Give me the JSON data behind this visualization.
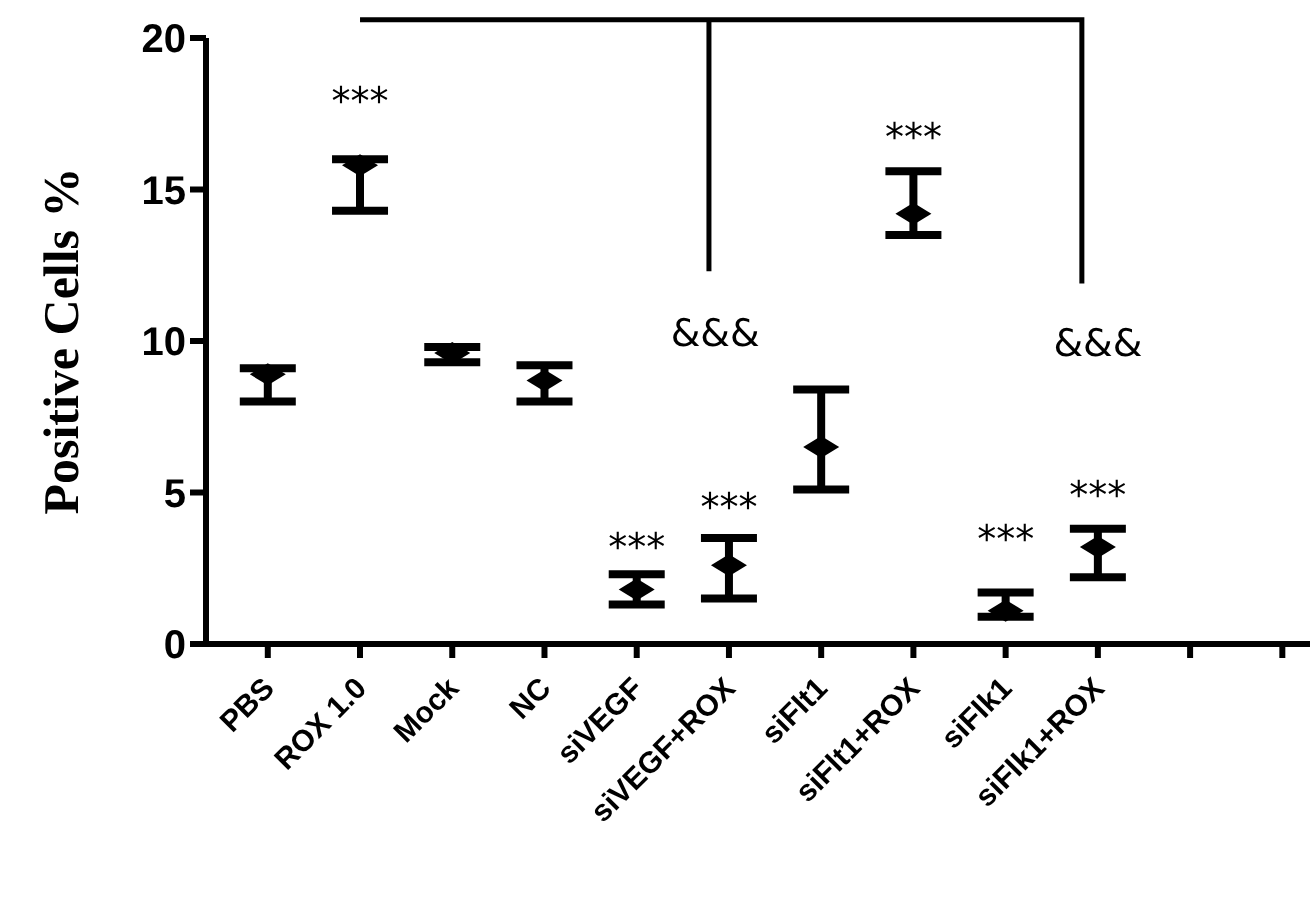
{
  "chart_data": {
    "type": "scatter",
    "ylabel": "Positive Cells %",
    "categories": [
      "PBS",
      "ROX 1.0",
      "Mock",
      "NC",
      "siVEGF",
      "siVEGF+ROX",
      "siFlt1",
      "siFlt1+ROX",
      "siFlk1",
      "siFlk1+ROX",
      null,
      null
    ],
    "series": [
      {
        "color": "#000000",
        "values": [
          8.9,
          15.8,
          9.6,
          8.7,
          1.8,
          2.6,
          6.5,
          14.2,
          1.1,
          3.2,
          null,
          null
        ],
        "errors": [
          [
            8.0,
            9.1
          ],
          [
            14.3,
            16.0
          ],
          [
            9.3,
            9.8
          ],
          [
            8.0,
            9.2
          ],
          [
            1.3,
            2.3
          ],
          [
            1.5,
            3.5
          ],
          [
            5.1,
            8.4
          ],
          [
            13.5,
            15.6
          ],
          [
            0.9,
            1.7
          ],
          [
            2.2,
            3.8
          ],
          null,
          null
        ]
      }
    ],
    "marker": "diamond",
    "ylim": [
      0,
      20
    ],
    "yticks": [
      0,
      5,
      10,
      15,
      20
    ],
    "grid": false,
    "legend": false,
    "annotations": [
      "***",
      "***",
      "***",
      "&&&",
      "***",
      "***",
      "***",
      "&&&"
    ]
  }
}
